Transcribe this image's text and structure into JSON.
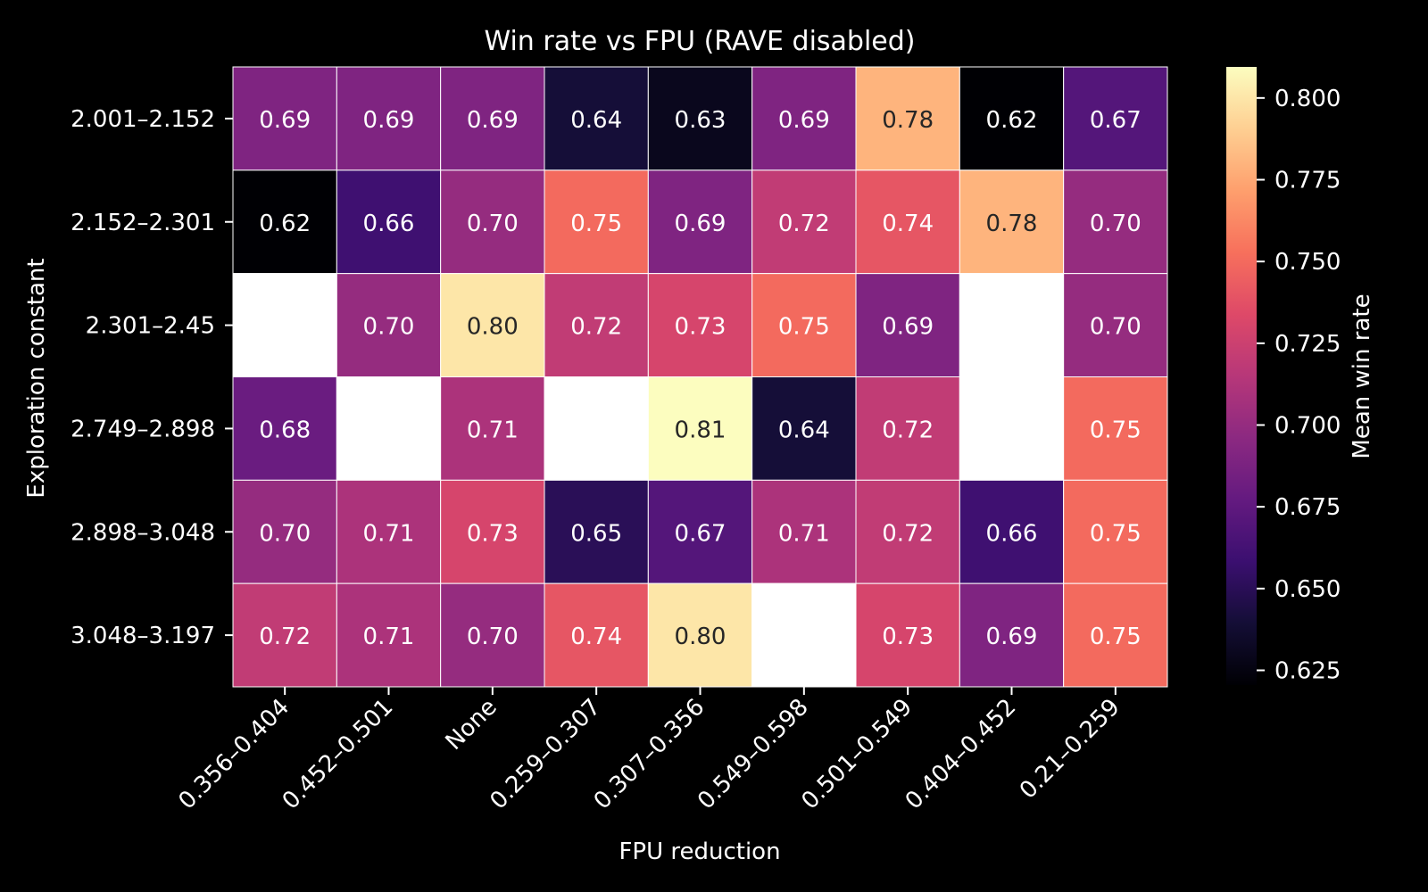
{
  "chart_data": {
    "type": "heatmap",
    "title": "Win rate vs FPU (RAVE disabled)",
    "xlabel": "FPU reduction",
    "ylabel": "Exploration constant",
    "x_categories": [
      "0.356–0.404",
      "0.452–0.501",
      "None",
      "0.259–0.307",
      "0.307–0.356",
      "0.549–0.598",
      "0.501–0.549",
      "0.404–0.452",
      "0.21–0.259"
    ],
    "y_categories": [
      "2.001–2.152",
      "2.152–2.301",
      "2.301–2.45",
      "2.749–2.898",
      "2.898–3.048",
      "3.048–3.197"
    ],
    "values": [
      [
        0.69,
        0.69,
        0.69,
        0.64,
        0.63,
        0.69,
        0.78,
        0.62,
        0.67
      ],
      [
        0.62,
        0.66,
        0.7,
        0.75,
        0.69,
        0.72,
        0.74,
        0.78,
        0.7
      ],
      [
        null,
        0.7,
        0.8,
        0.72,
        0.73,
        0.75,
        0.69,
        null,
        0.7
      ],
      [
        0.68,
        null,
        0.71,
        null,
        0.81,
        0.64,
        0.72,
        null,
        0.75
      ],
      [
        0.7,
        0.71,
        0.73,
        0.65,
        0.67,
        0.71,
        0.72,
        0.66,
        0.75
      ],
      [
        0.72,
        0.71,
        0.7,
        0.74,
        0.8,
        null,
        0.73,
        0.69,
        0.75
      ]
    ],
    "value_format": "2 decimals",
    "missing_color": "#ffffff",
    "colormap": "magma",
    "colorbar": {
      "label": "Mean win rate",
      "range": [
        0.6205,
        0.8095
      ],
      "ticks": [
        "0.625",
        "0.650",
        "0.675",
        "0.700",
        "0.725",
        "0.750",
        "0.775",
        "0.800"
      ]
    },
    "background": "#000000",
    "grid": false
  }
}
